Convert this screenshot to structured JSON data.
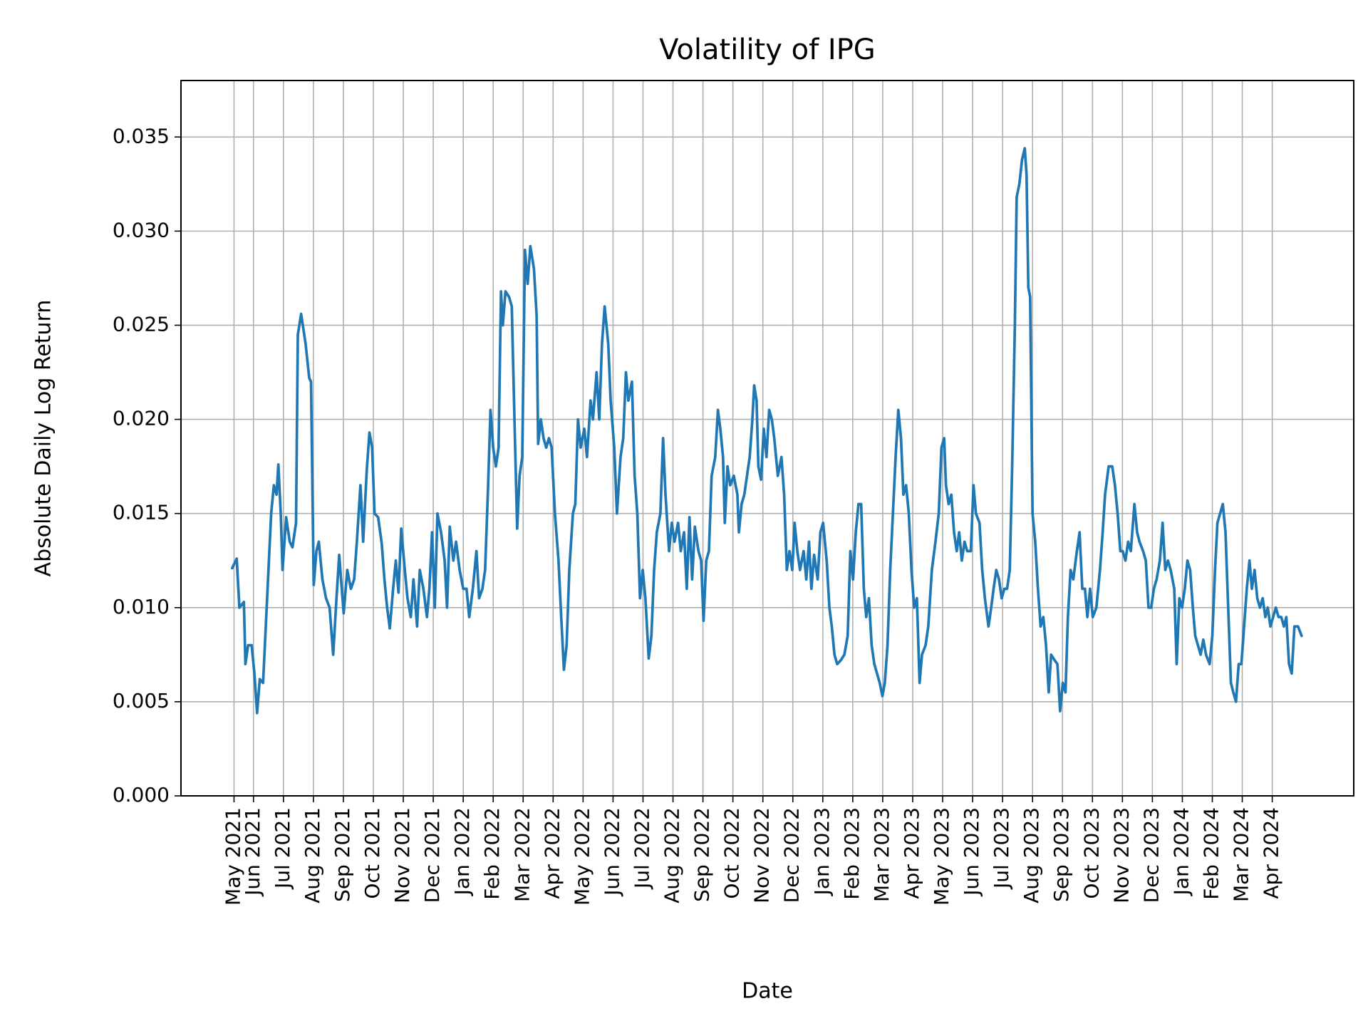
{
  "chart_data": {
    "type": "line",
    "title": "Volatility of IPG",
    "xlabel": "Date",
    "ylabel": "Absolute Daily Log Return",
    "color": "#1f77b4",
    "grid": true,
    "xlim": [
      -1.42,
      37.72
    ],
    "ylim": [
      0,
      0.038
    ],
    "xticks": [
      {
        "value": 0.35,
        "label": "May 2021"
      },
      {
        "value": 1,
        "label": "Jun 2021"
      },
      {
        "value": 2,
        "label": "Jul 2021"
      },
      {
        "value": 3,
        "label": "Aug 2021"
      },
      {
        "value": 4,
        "label": "Sep 2021"
      },
      {
        "value": 5,
        "label": "Oct 2021"
      },
      {
        "value": 6,
        "label": "Nov 2021"
      },
      {
        "value": 7,
        "label": "Dec 2021"
      },
      {
        "value": 8,
        "label": "Jan 2022"
      },
      {
        "value": 9,
        "label": "Feb 2022"
      },
      {
        "value": 10,
        "label": "Mar 2022"
      },
      {
        "value": 11,
        "label": "Apr 2022"
      },
      {
        "value": 12,
        "label": "May 2022"
      },
      {
        "value": 13,
        "label": "Jun 2022"
      },
      {
        "value": 14,
        "label": "Jul 2022"
      },
      {
        "value": 15,
        "label": "Aug 2022"
      },
      {
        "value": 16,
        "label": "Sep 2022"
      },
      {
        "value": 17,
        "label": "Oct 2022"
      },
      {
        "value": 18,
        "label": "Nov 2022"
      },
      {
        "value": 19,
        "label": "Dec 2022"
      },
      {
        "value": 20,
        "label": "Jan 2023"
      },
      {
        "value": 21,
        "label": "Feb 2023"
      },
      {
        "value": 22,
        "label": "Mar 2023"
      },
      {
        "value": 23,
        "label": "Apr 2023"
      },
      {
        "value": 24,
        "label": "May 2023"
      },
      {
        "value": 25,
        "label": "Jun 2023"
      },
      {
        "value": 26,
        "label": "Jul 2023"
      },
      {
        "value": 27,
        "label": "Aug 2023"
      },
      {
        "value": 28,
        "label": "Sep 2023"
      },
      {
        "value": 29,
        "label": "Oct 2023"
      },
      {
        "value": 30,
        "label": "Nov 2023"
      },
      {
        "value": 31,
        "label": "Dec 2023"
      },
      {
        "value": 32,
        "label": "Jan 2024"
      },
      {
        "value": 33,
        "label": "Feb 2024"
      },
      {
        "value": 34,
        "label": "Mar 2024"
      },
      {
        "value": 35,
        "label": "Apr 2024"
      }
    ],
    "yticks": [
      {
        "value": 0,
        "label": "0.000"
      },
      0.005,
      {
        "value": 0.01,
        "label": "0.010"
      },
      0.015,
      {
        "value": 0.02,
        "label": "0.020"
      },
      0.025,
      {
        "value": 0.03,
        "label": "0.030"
      },
      0.035
    ],
    "x": [
      0.29,
      0.44,
      0.53,
      0.68,
      0.73,
      0.82,
      0.94,
      1.03,
      1.12,
      1.21,
      1.32,
      1.47,
      1.59,
      1.68,
      1.77,
      1.83,
      1.91,
      1.97,
      2.09,
      2.21,
      2.3,
      2.42,
      2.48,
      2.59,
      2.74,
      2.86,
      2.92,
      3.01,
      3.1,
      3.18,
      3.3,
      3.42,
      3.54,
      3.66,
      3.77,
      3.86,
      4.01,
      4.13,
      4.25,
      4.36,
      4.45,
      4.57,
      4.66,
      4.78,
      4.87,
      4.96,
      5.04,
      5.16,
      5.28,
      5.37,
      5.46,
      5.55,
      5.66,
      5.75,
      5.84,
      5.93,
      6.05,
      6.14,
      6.25,
      6.34,
      6.46,
      6.55,
      6.67,
      6.79,
      6.87,
      6.96,
      7.05,
      7.14,
      7.26,
      7.38,
      7.46,
      7.55,
      7.67,
      7.76,
      7.88,
      8.0,
      8.11,
      8.2,
      8.32,
      8.44,
      8.53,
      8.64,
      8.73,
      8.82,
      8.91,
      9.0,
      9.09,
      9.18,
      9.26,
      9.32,
      9.41,
      9.53,
      9.62,
      9.71,
      9.8,
      9.88,
      9.97,
      10.06,
      10.15,
      10.24,
      10.36,
      10.45,
      10.5,
      10.59,
      10.68,
      10.77,
      10.86,
      10.95,
      11.06,
      11.18,
      11.27,
      11.36,
      11.45,
      11.54,
      11.66,
      11.74,
      11.83,
      11.92,
      12.04,
      12.13,
      12.25,
      12.33,
      12.45,
      12.54,
      12.63,
      12.72,
      12.84,
      12.92,
      13.04,
      13.13,
      13.25,
      13.34,
      13.43,
      13.51,
      13.63,
      13.72,
      13.81,
      13.9,
      13.99,
      14.08,
      14.19,
      14.28,
      14.37,
      14.46,
      14.58,
      14.67,
      14.75,
      14.87,
      14.96,
      15.05,
      15.17,
      15.26,
      15.37,
      15.46,
      15.55,
      15.64,
      15.73,
      15.85,
      15.94,
      16.02,
      16.11,
      16.2,
      16.29,
      16.41,
      16.5,
      16.58,
      16.67,
      16.73,
      16.82,
      16.91,
      17.03,
      17.15,
      17.2,
      17.29,
      17.38,
      17.47,
      17.56,
      17.65,
      17.71,
      17.79,
      17.85,
      17.94,
      18.03,
      18.12,
      18.21,
      18.3,
      18.38,
      18.5,
      18.62,
      18.71,
      18.8,
      18.89,
      18.98,
      19.06,
      19.15,
      19.24,
      19.36,
      19.45,
      19.54,
      19.62,
      19.71,
      19.83,
      19.92,
      20.01,
      20.13,
      20.22,
      20.3,
      20.39,
      20.48,
      20.6,
      20.72,
      20.83,
      20.92,
      21.01,
      21.1,
      21.19,
      21.28,
      21.37,
      21.45,
      21.54,
      21.63,
      21.72,
      21.81,
      21.9,
      21.99,
      22.07,
      22.16,
      22.25,
      22.34,
      22.43,
      22.52,
      22.61,
      22.69,
      22.78,
      22.87,
      22.96,
      23.05,
      23.14,
      23.23,
      23.31,
      23.43,
      23.52,
      23.64,
      23.76,
      23.87,
      23.96,
      24.05,
      24.11,
      24.2,
      24.29,
      24.38,
      24.47,
      24.55,
      24.64,
      24.73,
      24.82,
      24.94,
      25.03,
      25.11,
      25.23,
      25.32,
      25.41,
      25.53,
      25.62,
      25.7,
      25.79,
      25.88,
      25.97,
      26.06,
      26.15,
      26.24,
      26.32,
      26.41,
      26.47,
      26.56,
      26.65,
      26.74,
      26.8,
      26.86,
      26.92,
      27.0,
      27.09,
      27.18,
      27.27,
      27.36,
      27.45,
      27.54,
      27.62,
      27.74,
      27.83,
      27.92,
      28.01,
      28.1,
      28.18,
      28.27,
      28.36,
      28.48,
      28.57,
      28.66,
      28.75,
      28.83,
      28.92,
      29.01,
      29.13,
      29.25,
      29.34,
      29.42,
      29.54,
      29.66,
      29.75,
      29.84,
      29.93,
      30.01,
      30.1,
      30.19,
      30.28,
      30.4,
      30.49,
      30.57,
      30.69,
      30.78,
      30.87,
      30.96,
      31.05,
      31.14,
      31.25,
      31.34,
      31.43,
      31.52,
      31.61,
      31.73,
      31.81,
      31.9,
      31.99,
      32.08,
      32.17,
      32.26,
      32.35,
      32.43,
      32.52,
      32.61,
      32.7,
      32.79,
      32.91,
      33.0,
      33.09,
      33.17,
      33.26,
      33.35,
      33.44,
      33.53,
      33.62,
      33.7,
      33.79,
      33.88,
      33.97,
      34.06,
      34.15,
      34.24,
      34.32,
      34.41,
      34.5,
      34.59,
      34.68,
      34.77,
      34.85,
      34.94,
      35.03,
      35.12,
      35.21,
      35.3,
      35.39,
      35.47,
      35.56,
      35.65,
      35.74,
      35.86,
      35.98
    ],
    "values": [
      0.0121,
      0.0126,
      0.01,
      0.0103,
      0.007,
      0.008,
      0.008,
      0.0065,
      0.0044,
      0.0062,
      0.006,
      0.011,
      0.015,
      0.0165,
      0.016,
      0.0176,
      0.015,
      0.012,
      0.0148,
      0.0135,
      0.0132,
      0.0145,
      0.0245,
      0.0256,
      0.024,
      0.0222,
      0.022,
      0.0112,
      0.013,
      0.0135,
      0.0115,
      0.0105,
      0.01,
      0.0075,
      0.0105,
      0.0128,
      0.0097,
      0.012,
      0.011,
      0.0115,
      0.0135,
      0.0165,
      0.0135,
      0.0173,
      0.0193,
      0.0185,
      0.015,
      0.0148,
      0.0134,
      0.0115,
      0.01,
      0.0089,
      0.011,
      0.0125,
      0.0108,
      0.0142,
      0.012,
      0.0105,
      0.0095,
      0.0115,
      0.009,
      0.012,
      0.011,
      0.0095,
      0.011,
      0.014,
      0.01,
      0.015,
      0.014,
      0.0125,
      0.01,
      0.0143,
      0.0125,
      0.0135,
      0.012,
      0.011,
      0.011,
      0.0095,
      0.011,
      0.013,
      0.0105,
      0.011,
      0.012,
      0.016,
      0.0205,
      0.0185,
      0.0175,
      0.0185,
      0.0268,
      0.025,
      0.0268,
      0.0265,
      0.026,
      0.02,
      0.0142,
      0.017,
      0.018,
      0.029,
      0.0272,
      0.0292,
      0.028,
      0.0255,
      0.0187,
      0.02,
      0.019,
      0.0185,
      0.019,
      0.0185,
      0.015,
      0.0125,
      0.0095,
      0.0067,
      0.008,
      0.012,
      0.015,
      0.0155,
      0.02,
      0.0185,
      0.0195,
      0.018,
      0.021,
      0.02,
      0.0225,
      0.02,
      0.024,
      0.026,
      0.024,
      0.021,
      0.0185,
      0.015,
      0.018,
      0.019,
      0.0225,
      0.021,
      0.022,
      0.017,
      0.015,
      0.0105,
      0.012,
      0.0105,
      0.0073,
      0.0085,
      0.012,
      0.014,
      0.015,
      0.019,
      0.016,
      0.013,
      0.0145,
      0.0135,
      0.0145,
      0.013,
      0.014,
      0.011,
      0.0148,
      0.0115,
      0.0143,
      0.013,
      0.0125,
      0.0093,
      0.0125,
      0.013,
      0.017,
      0.018,
      0.0205,
      0.0195,
      0.018,
      0.0145,
      0.0175,
      0.0165,
      0.017,
      0.016,
      0.014,
      0.0155,
      0.016,
      0.017,
      0.018,
      0.02,
      0.0218,
      0.021,
      0.0175,
      0.0168,
      0.0195,
      0.018,
      0.0205,
      0.02,
      0.019,
      0.017,
      0.018,
      0.016,
      0.012,
      0.013,
      0.012,
      0.0145,
      0.013,
      0.012,
      0.013,
      0.0115,
      0.0135,
      0.011,
      0.0128,
      0.0115,
      0.014,
      0.0145,
      0.0125,
      0.01,
      0.009,
      0.0075,
      0.007,
      0.0072,
      0.0075,
      0.0085,
      0.013,
      0.0115,
      0.014,
      0.0155,
      0.0155,
      0.011,
      0.0095,
      0.0105,
      0.008,
      0.007,
      0.0065,
      0.006,
      0.0053,
      0.006,
      0.008,
      0.012,
      0.015,
      0.018,
      0.0205,
      0.019,
      0.016,
      0.0165,
      0.015,
      0.012,
      0.01,
      0.0105,
      0.006,
      0.0075,
      0.008,
      0.009,
      0.012,
      0.0135,
      0.015,
      0.0185,
      0.019,
      0.0165,
      0.0155,
      0.016,
      0.014,
      0.013,
      0.014,
      0.0125,
      0.0135,
      0.013,
      0.013,
      0.0165,
      0.015,
      0.0145,
      0.012,
      0.0105,
      0.009,
      0.01,
      0.011,
      0.012,
      0.0115,
      0.0105,
      0.011,
      0.011,
      0.012,
      0.0175,
      0.025,
      0.0318,
      0.0325,
      0.0338,
      0.0344,
      0.033,
      0.027,
      0.0265,
      0.015,
      0.0135,
      0.011,
      0.009,
      0.0095,
      0.008,
      0.0055,
      0.0075,
      0.0072,
      0.007,
      0.0045,
      0.006,
      0.0055,
      0.0095,
      0.012,
      0.0115,
      0.013,
      0.014,
      0.011,
      0.011,
      0.0095,
      0.011,
      0.0095,
      0.01,
      0.012,
      0.014,
      0.016,
      0.0175,
      0.0175,
      0.0165,
      0.015,
      0.013,
      0.013,
      0.0125,
      0.0135,
      0.013,
      0.0155,
      0.014,
      0.0135,
      0.013,
      0.0125,
      0.01,
      0.01,
      0.011,
      0.0115,
      0.0125,
      0.0145,
      0.012,
      0.0125,
      0.012,
      0.011,
      0.007,
      0.0105,
      0.01,
      0.011,
      0.0125,
      0.012,
      0.01,
      0.0085,
      0.008,
      0.0075,
      0.0083,
      0.0075,
      0.007,
      0.0085,
      0.012,
      0.0145,
      0.015,
      0.0155,
      0.014,
      0.01,
      0.006,
      0.0055,
      0.005,
      0.007,
      0.007,
      0.009,
      0.011,
      0.0125,
      0.011,
      0.012,
      0.0105,
      0.01,
      0.0105,
      0.0095,
      0.01,
      0.009,
      0.0095,
      0.01,
      0.0095,
      0.0095,
      0.009,
      0.0095,
      0.007,
      0.0065,
      0.009,
      0.009,
      0.0085
    ]
  }
}
